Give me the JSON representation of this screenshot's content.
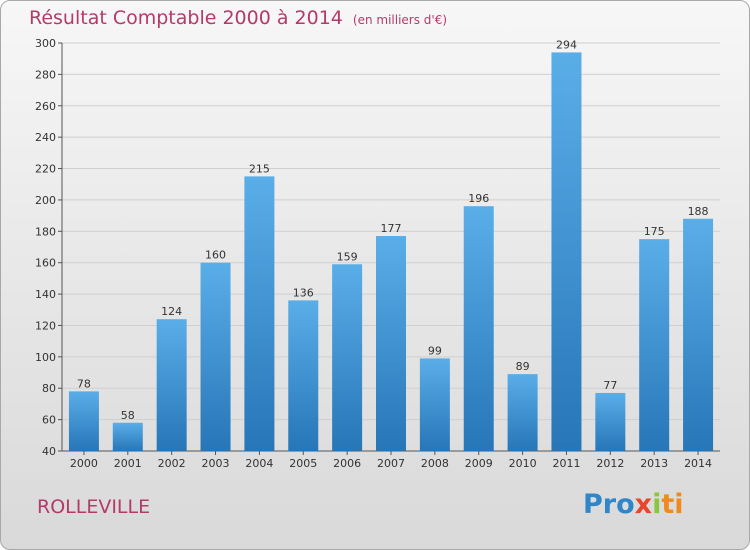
{
  "title": "Résultat Comptable 2000 à 2014",
  "unit": "(en milliers d'€)",
  "commune": "ROLLEVILLE",
  "logo": {
    "part1": "Pro",
    "part2": "x",
    "part3": "i",
    "part4": "ti"
  },
  "colors": {
    "bar_top": "#5aaee8",
    "bar_bottom": "#2776b8",
    "grid": "#cfcfcf",
    "title": "#b43a6a"
  },
  "chart_data": {
    "type": "bar",
    "categories": [
      "2000",
      "2001",
      "2002",
      "2003",
      "2004",
      "2005",
      "2006",
      "2007",
      "2008",
      "2009",
      "2010",
      "2011",
      "2012",
      "2013",
      "2014"
    ],
    "values": [
      78,
      58,
      124,
      160,
      215,
      136,
      159,
      177,
      99,
      196,
      89,
      294,
      77,
      175,
      188
    ],
    "ylim": [
      40,
      300
    ],
    "yticks": [
      40,
      60,
      80,
      100,
      120,
      140,
      160,
      180,
      200,
      220,
      240,
      260,
      280,
      300
    ],
    "grid": true
  }
}
